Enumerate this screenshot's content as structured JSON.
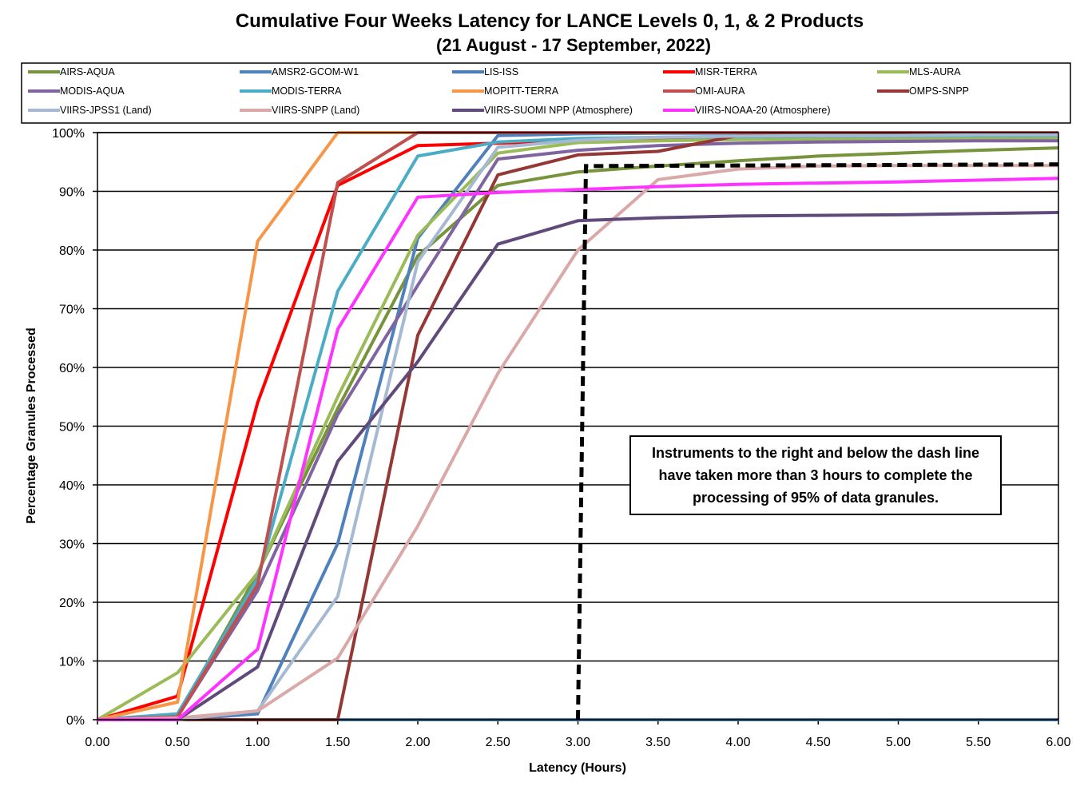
{
  "chart_data": {
    "type": "line",
    "title": "Cumulative Four Weeks Latency  for LANCE Levels 0, 1, & 2 Products",
    "subtitle": "(21  August   -  17  September,  2022)",
    "xlabel": "Latency (Hours)",
    "ylabel": "Percentage Granules Processed",
    "x": [
      0,
      0.5,
      1,
      1.5,
      2,
      2.5,
      3,
      3.5,
      4,
      4.5,
      5,
      5.5,
      6
    ],
    "x_tick_labels": [
      "0.00",
      "0.50",
      "1.00",
      "1.50",
      "2.00",
      "2.50",
      "3.00",
      "3.50",
      "4.00",
      "4.50",
      "5.00",
      "5.50",
      "6.00"
    ],
    "y_tick_labels": [
      "0%",
      "10%",
      "20%",
      "30%",
      "40%",
      "50%",
      "60%",
      "70%",
      "80%",
      "90%",
      "100%"
    ],
    "xlim": [
      0,
      6
    ],
    "ylim": [
      0,
      100
    ],
    "grid": "horizontal",
    "legend_position": "top",
    "series": [
      {
        "name": "AIRS-AQUA",
        "color": "#77933C",
        "values": [
          0,
          0.5,
          25,
          53,
          79,
          91,
          93.3,
          94.3,
          95.2,
          96,
          96.5,
          97,
          97.4
        ]
      },
      {
        "name": "AMSR2-GCOM-W1",
        "color": "#4F81BD",
        "values": [
          0,
          0,
          1,
          30,
          82,
          99.5,
          99.8,
          99.9,
          99.9,
          99.9,
          99.9,
          99.9,
          99.9
        ]
      },
      {
        "name": "LIS-ISS",
        "color": "#4A7EBB",
        "values": [
          0,
          0,
          0,
          0,
          0,
          0,
          0,
          0,
          0,
          0,
          0,
          0,
          0
        ]
      },
      {
        "name": "MISR-TERRA",
        "color": "#FF0000",
        "values": [
          0,
          4,
          54,
          91,
          97.8,
          98.2,
          98.6,
          99,
          99.2,
          99.3,
          99.4,
          99.5,
          99.6
        ]
      },
      {
        "name": "MLS-AURA",
        "color": "#9BBB59",
        "values": [
          0,
          8,
          25,
          55,
          82.5,
          96.5,
          98.3,
          98.6,
          98.8,
          98.9,
          98.9,
          99,
          99
        ]
      },
      {
        "name": "MODIS-AQUA",
        "color": "#8064A2",
        "values": [
          0,
          0.5,
          22,
          52,
          74,
          95.5,
          97,
          97.8,
          98.2,
          98.4,
          98.5,
          98.6,
          98.6
        ]
      },
      {
        "name": "MODIS-TERRA",
        "color": "#4BACC6",
        "values": [
          0,
          1,
          24,
          73,
          96,
          98.4,
          99,
          99.2,
          99.3,
          99.4,
          99.4,
          99.5,
          99.5
        ]
      },
      {
        "name": "MOPITT-TERRA",
        "color": "#F79646",
        "values": [
          0,
          3,
          81.5,
          100,
          100,
          100,
          100,
          100,
          100,
          100,
          100,
          100,
          100
        ]
      },
      {
        "name": "OMI-AURA",
        "color": "#C0504D",
        "values": [
          0,
          0.5,
          23,
          91.5,
          100,
          100,
          100,
          100,
          100,
          100,
          100,
          100,
          100
        ]
      },
      {
        "name": "OMPS-SNPP",
        "color": "#953735",
        "values": [
          0,
          0,
          0,
          0,
          65.5,
          92.8,
          96.2,
          96.8,
          99.5,
          99.6,
          99.6,
          99.6,
          99.6
        ]
      },
      {
        "name": "VIIRS-JPSS1 (Land)",
        "color": "#A6B9D3",
        "values": [
          0,
          0,
          1.5,
          21,
          78,
          97.5,
          98.7,
          99.2,
          99.4,
          99.5,
          99.5,
          99.6,
          99.6
        ]
      },
      {
        "name": "VIIRS-SNPP (Land)",
        "color": "#D9A8A7",
        "values": [
          0,
          0.3,
          1.5,
          10.5,
          33,
          59,
          80,
          92,
          93.8,
          94.3,
          94.4,
          94.4,
          94.4
        ]
      },
      {
        "name": "VIIRS-SUOMI NPP (Atmosphere)",
        "color": "#604A7B",
        "values": [
          0,
          0,
          9,
          44,
          61,
          81,
          85,
          85.5,
          85.8,
          85.9,
          86,
          86.2,
          86.4
        ]
      },
      {
        "name": "VIIRS-NOAA-20 (Atmosphere)",
        "color": "#FF33FF",
        "values": [
          0,
          0,
          12,
          66.5,
          89,
          89.8,
          90.3,
          90.8,
          91.2,
          91.4,
          91.6,
          91.9,
          92.2
        ]
      }
    ],
    "threshold_line": {
      "x": [
        3.0,
        3.05,
        6
      ],
      "y": [
        0,
        94.3,
        94.6
      ],
      "style": "dashed",
      "color": "#000000"
    },
    "annotation": "Instruments to the right and below the dash line have taken more than 3 hours to complete the processing of 95% of data granules."
  }
}
